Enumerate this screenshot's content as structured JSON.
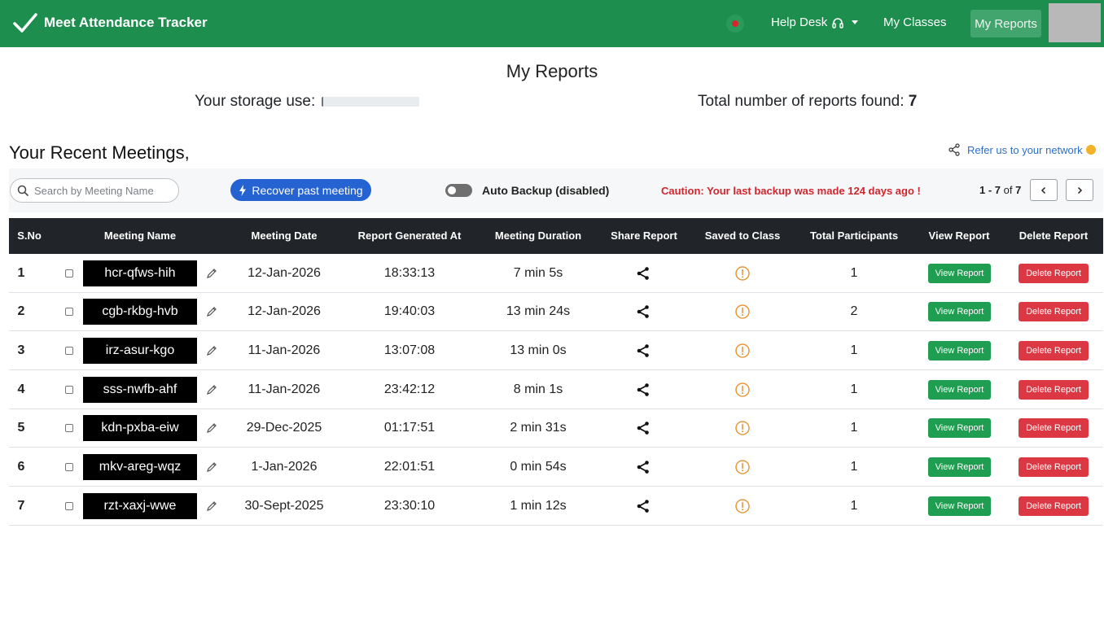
{
  "navbar": {
    "brand_title": "Meet Attendance Tracker",
    "help_desk": "Help Desk",
    "my_classes": "My Classes",
    "my_reports": "My Reports",
    "color": "#1e8e4e"
  },
  "page": {
    "title": "My Reports",
    "storage_label": "Your storage use:",
    "storage_used_fraction": 0.0,
    "report_count_label": "Total number of reports found:",
    "report_count": "7",
    "recent_title": "Your Recent Meetings,",
    "refer_text": "Refer us to your network"
  },
  "toolbar": {
    "search_placeholder": "Search by Meeting Name",
    "search_value": "",
    "recover_label": "Recover past meeting",
    "auto_backup_label": "Auto Backup (disabled)",
    "auto_backup_enabled": false,
    "caution_text": "Caution: Your last backup was made 124 days ago !",
    "pager_range": "1 - 7",
    "pager_of": "of",
    "pager_total": "7"
  },
  "table": {
    "headers": {
      "sno": "S.No",
      "name": "Meeting Name",
      "date": "Meeting Date",
      "generated": "Report Generated At",
      "duration": "Meeting Duration",
      "share": "Share Report",
      "saved": "Saved to Class",
      "participants": "Total Participants",
      "view": "View Report",
      "delete": "Delete Report"
    },
    "view_label": "View Report",
    "delete_label": "Delete Report",
    "rows": [
      {
        "sno": "1",
        "name": "hcr-qfws-hih",
        "date": "12-Jan-2026",
        "generated": "18:33:13",
        "duration": "7 min 5s",
        "participants": "1"
      },
      {
        "sno": "2",
        "name": "cgb-rkbg-hvb",
        "date": "12-Jan-2026",
        "generated": "19:40:03",
        "duration": "13 min 24s",
        "participants": "2"
      },
      {
        "sno": "3",
        "name": "irz-asur-kgo",
        "date": "11-Jan-2026",
        "generated": "13:07:08",
        "duration": "13 min 0s",
        "participants": "1"
      },
      {
        "sno": "4",
        "name": "sss-nwfb-ahf",
        "date": "11-Jan-2026",
        "generated": "23:42:12",
        "duration": "8 min 1s",
        "participants": "1"
      },
      {
        "sno": "5",
        "name": "kdn-pxba-eiw",
        "date": "29-Dec-2025",
        "generated": "01:17:51",
        "duration": "2 min 31s",
        "participants": "1"
      },
      {
        "sno": "6",
        "name": "mkv-areg-wqz",
        "date": "1-Jan-2026",
        "generated": "22:01:51",
        "duration": "0 min 54s",
        "participants": "1"
      },
      {
        "sno": "7",
        "name": "rzt-xaxj-wwe",
        "date": "30-Sept-2025",
        "generated": "23:30:10",
        "duration": "1 min 12s",
        "participants": "1"
      }
    ]
  }
}
